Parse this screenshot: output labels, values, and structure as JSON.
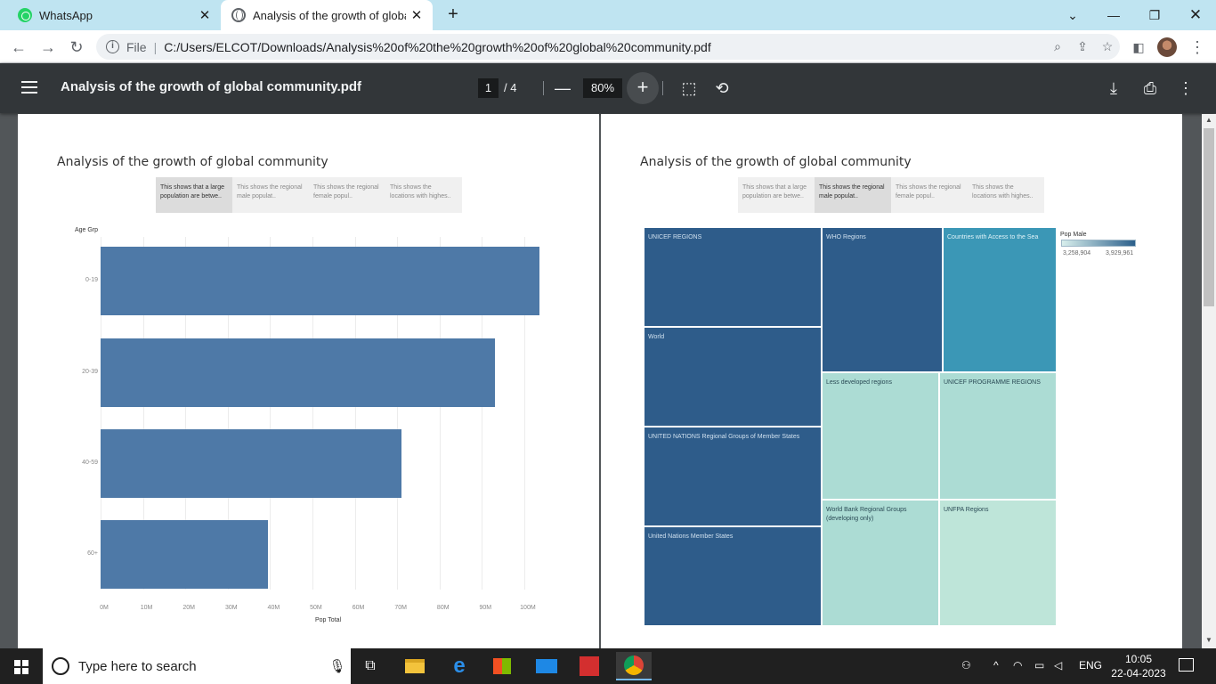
{
  "browser": {
    "tabs": [
      {
        "title": "WhatsApp",
        "favicon": "whatsapp-icon"
      },
      {
        "title": "Analysis of the growth of global",
        "favicon": "globe-icon"
      }
    ],
    "omnibox": {
      "scheme_label": "File",
      "url": "C:/Users/ELCOT/Downloads/Analysis%20of%20the%20growth%20of%20global%20community.pdf"
    }
  },
  "pdf": {
    "title": "Analysis of the growth of global community.pdf",
    "current_page": "1",
    "total_pages": "/  4",
    "zoom": "80%"
  },
  "story": {
    "title": "Analysis of the growth of global community",
    "tabs": [
      "This shows that a large population are betwe..",
      "This shows the regional male populat..",
      "This shows the regional female popul..",
      "This shows the locations with highes.."
    ]
  },
  "chart_data": [
    {
      "type": "bar",
      "orientation": "horizontal",
      "ylabel": "Age Grp",
      "xlabel": "Pop Total",
      "categories": [
        "0-19",
        "20-39",
        "40-59",
        "60+"
      ],
      "values": [
        103.5,
        93,
        71,
        39.5
      ],
      "units": "M",
      "xlim": [
        0,
        108
      ],
      "xticks": [
        0,
        10,
        20,
        30,
        40,
        50,
        60,
        70,
        80,
        90,
        100
      ],
      "xtick_labels": [
        "0M",
        "10M",
        "20M",
        "30M",
        "40M",
        "50M",
        "60M",
        "70M",
        "80M",
        "90M",
        "100M"
      ],
      "color": "#4e79a7"
    },
    {
      "type": "heatmap",
      "subtype": "treemap",
      "legend_title": "Pop Male",
      "legend_min": "3,258,904",
      "legend_max": "3,929,961",
      "cells": [
        "UNICEF REGIONS",
        "World",
        "UNITED NATIONS Regional Groups of Member States",
        "United Nations Member States",
        "WHO Regions",
        "Countries with Access to the Sea",
        "Less developed regions",
        "UNICEF PROGRAMME REGIONS",
        "World Bank Regional Groups (developing only)",
        "UNFPA Regions"
      ]
    }
  ],
  "taskbar": {
    "search_placeholder": "Type here to search",
    "language": "ENG",
    "time": "10:05",
    "date": "22-04-2023"
  }
}
